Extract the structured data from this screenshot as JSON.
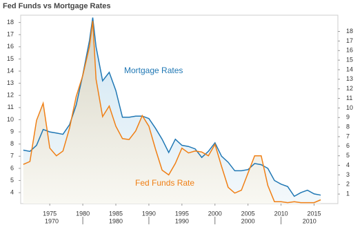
{
  "chart_data": {
    "type": "line",
    "title": "Fed Funds vs Mortgage Rates",
    "x": [
      1971,
      1972,
      1973,
      1974,
      1975,
      1976,
      1977,
      1978,
      1979,
      1980,
      1981,
      1981.5,
      1982,
      1983,
      1984,
      1985,
      1986,
      1987,
      1988,
      1989,
      1990,
      1991,
      1992,
      1993,
      1994,
      1995,
      1996,
      1997,
      1998,
      1999,
      2000,
      2001,
      2002,
      2003,
      2004,
      2005,
      2006,
      2007,
      2008,
      2009,
      2010,
      2011,
      2012,
      2013,
      2014,
      2015,
      2016
    ],
    "series": [
      {
        "name": "Mortgage Rates",
        "color": "#1f77b4",
        "values": [
          7.5,
          7.4,
          7.9,
          9.2,
          9.0,
          8.9,
          8.8,
          9.6,
          11.2,
          13.7,
          16.5,
          18.4,
          16.0,
          13.2,
          13.9,
          12.4,
          10.2,
          10.2,
          10.3,
          10.3,
          10.1,
          9.3,
          8.4,
          7.3,
          8.4,
          7.9,
          7.8,
          7.6,
          6.9,
          7.4,
          8.1,
          7.0,
          6.5,
          5.8,
          5.8,
          5.9,
          6.4,
          6.3,
          6.0,
          5.0,
          4.7,
          4.5,
          3.7,
          4.0,
          4.2,
          3.9,
          3.8
        ]
      },
      {
        "name": "Fed Funds Rate",
        "color": "#f07f14",
        "axis": "y2",
        "values": [
          4.1,
          4.4,
          8.7,
          10.5,
          5.8,
          5.0,
          5.5,
          7.9,
          11.2,
          13.4,
          16.4,
          19.1,
          13.0,
          9.1,
          10.2,
          8.1,
          6.8,
          6.7,
          7.6,
          9.2,
          8.1,
          5.7,
          3.5,
          3.0,
          4.2,
          5.8,
          5.3,
          5.5,
          5.4,
          5.0,
          6.2,
          3.9,
          1.7,
          1.1,
          1.4,
          3.2,
          5.0,
          5.0,
          1.9,
          0.2,
          0.2,
          0.1,
          0.2,
          0.1,
          0.1,
          0.1,
          0.4
        ]
      }
    ],
    "xlim": [
      1970.6,
      2018.6
    ],
    "xticks": [
      1975,
      1980,
      1985,
      1990,
      1995,
      2000,
      2005,
      2010,
      2015
    ],
    "decade_labels": [
      1970,
      1980,
      1990,
      2000,
      2010
    ],
    "ylim": [
      3.1,
      18.6
    ],
    "yticks": [
      4,
      5,
      6,
      7,
      8,
      9,
      10,
      11,
      12,
      13,
      14,
      15,
      16,
      17,
      18
    ],
    "y2lim": [
      0,
      19.7
    ],
    "y2ticks": [
      1,
      2,
      3,
      4,
      5,
      6,
      7,
      8,
      9,
      10,
      11,
      12,
      13,
      14,
      15,
      16,
      17,
      18
    ]
  }
}
